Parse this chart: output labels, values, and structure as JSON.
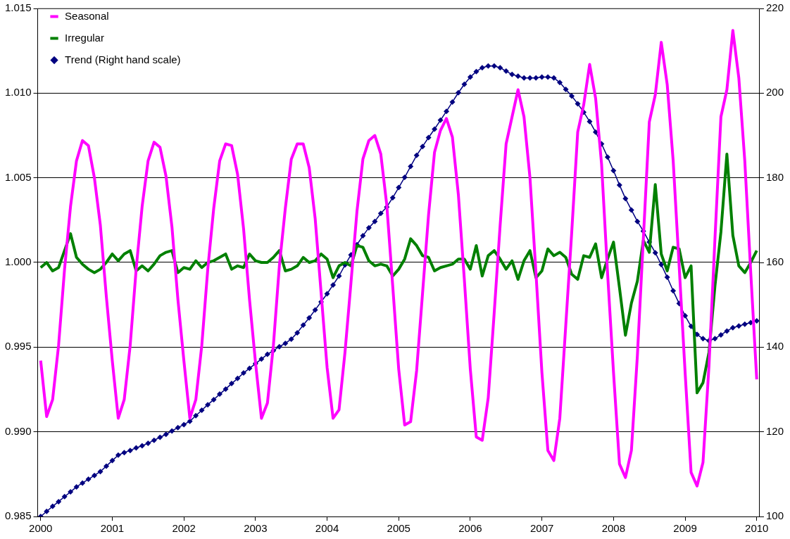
{
  "chart_data": {
    "type": "line",
    "categories": [
      "2000",
      null,
      null,
      null,
      null,
      null,
      null,
      null,
      null,
      null,
      null,
      null,
      "2001",
      null,
      null,
      null,
      null,
      null,
      null,
      null,
      null,
      null,
      null,
      null,
      "2002",
      null,
      null,
      null,
      null,
      null,
      null,
      null,
      null,
      null,
      null,
      null,
      "2003",
      null,
      null,
      null,
      null,
      null,
      null,
      null,
      null,
      null,
      null,
      null,
      "2004",
      null,
      null,
      null,
      null,
      null,
      null,
      null,
      null,
      null,
      null,
      null,
      "2005",
      null,
      null,
      null,
      null,
      null,
      null,
      null,
      null,
      null,
      null,
      null,
      "2006",
      null,
      null,
      null,
      null,
      null,
      null,
      null,
      null,
      null,
      null,
      null,
      "2007",
      null,
      null,
      null,
      null,
      null,
      null,
      null,
      null,
      null,
      null,
      null,
      "2008",
      null,
      null,
      null,
      null,
      null,
      null,
      null,
      null,
      null,
      null,
      null,
      "2009",
      null,
      null,
      null,
      null,
      null,
      null,
      null,
      null,
      null,
      null,
      null,
      "2010"
    ],
    "series": [
      {
        "name": "Seasonal",
        "color": "#ff00ff",
        "marker": "none",
        "values": [
          0.9942,
          0.9909,
          0.9919,
          0.9951,
          0.9996,
          1.0033,
          1.006,
          1.0072,
          1.0069,
          1.005,
          1.0022,
          0.998,
          0.9942,
          0.9908,
          0.9919,
          0.9951,
          0.9996,
          1.0033,
          1.006,
          1.0071,
          1.0068,
          1.0051,
          1.0021,
          0.9978,
          0.9942,
          0.9908,
          0.9919,
          0.9951,
          0.9996,
          1.0032,
          1.006,
          1.007,
          1.0069,
          1.0052,
          1.002,
          0.9978,
          0.9941,
          0.9908,
          0.9917,
          0.9951,
          0.9998,
          1.0032,
          1.0061,
          1.007,
          1.007,
          1.0056,
          1.0026,
          0.9982,
          0.9938,
          0.9908,
          0.9913,
          0.9947,
          0.9988,
          1.003,
          1.0061,
          1.0072,
          1.0075,
          1.0064,
          1.0034,
          0.9986,
          0.9937,
          0.9904,
          0.9906,
          0.9936,
          0.9982,
          1.0028,
          1.0065,
          1.0078,
          1.0085,
          1.0074,
          1.004,
          0.999,
          0.9937,
          0.9897,
          0.9895,
          0.992,
          0.997,
          1.0022,
          1.007,
          1.0086,
          1.0102,
          1.0086,
          1.005,
          0.9994,
          0.9935,
          0.9889,
          0.9883,
          0.9908,
          0.9963,
          1.0018,
          1.0077,
          1.0093,
          1.0117,
          1.0097,
          1.0058,
          0.9994,
          0.9935,
          0.9881,
          0.9873,
          0.9889,
          0.9945,
          1.0014,
          1.0083,
          1.0099,
          1.013,
          1.0105,
          1.006,
          0.9998,
          0.9935,
          0.9876,
          0.9868,
          0.9882,
          0.9939,
          1.0014,
          1.0086,
          1.0102,
          1.0137,
          1.0109,
          1.006,
          0.9994,
          0.9931
        ]
      },
      {
        "name": "Irregular",
        "color": "#008000",
        "marker": "none",
        "values": [
          0.9997,
          1.0,
          0.9995,
          0.9997,
          1.0007,
          1.0017,
          1.0003,
          0.9999,
          0.9996,
          0.9994,
          0.9996,
          1.0,
          1.0005,
          1.0001,
          1.0005,
          1.0007,
          0.9995,
          0.9998,
          0.9995,
          0.9999,
          1.0004,
          1.0006,
          1.0007,
          0.9994,
          0.9997,
          0.9996,
          1.0001,
          0.9997,
          1.0,
          1.0001,
          1.0003,
          1.0005,
          0.9996,
          0.9998,
          0.9997,
          1.0005,
          1.0001,
          1.0,
          1.0,
          1.0003,
          1.0007,
          0.9995,
          0.9996,
          0.9998,
          1.0003,
          1.0,
          1.0001,
          1.0005,
          1.0002,
          0.9991,
          0.9998,
          1.0,
          0.9998,
          1.001,
          1.0009,
          1.0001,
          0.9998,
          0.9999,
          0.9998,
          0.9992,
          0.9996,
          1.0002,
          1.0014,
          1.001,
          1.0004,
          1.0003,
          0.9995,
          0.9997,
          0.9998,
          0.9999,
          1.0002,
          1.0002,
          0.9996,
          1.001,
          0.9992,
          1.0004,
          1.0007,
          1.0002,
          0.9996,
          1.0001,
          0.999,
          1.0001,
          1.0007,
          0.9991,
          0.9995,
          1.0008,
          1.0004,
          1.0006,
          1.0003,
          0.9993,
          0.999,
          1.0004,
          1.0003,
          1.0011,
          0.9991,
          1.0002,
          1.0012,
          0.9985,
          0.9957,
          0.9976,
          0.9989,
          1.0013,
          1.0006,
          1.0046,
          1.0005,
          0.9995,
          1.0009,
          1.0008,
          0.9991,
          0.9998,
          0.9923,
          0.9929,
          0.9947,
          0.9986,
          1.0018,
          1.0064,
          1.0016,
          0.9998,
          0.9994,
          1.0,
          1.0007
        ]
      },
      {
        "name": "Trend (Right hand scale)",
        "color": "#000080",
        "marker": "diamond",
        "axis": "y2",
        "values": [
          100.0,
          101.2,
          102.4,
          103.5,
          104.7,
          105.8,
          107.0,
          107.9,
          108.8,
          109.7,
          110.6,
          111.9,
          113.2,
          114.5,
          115.1,
          115.6,
          116.2,
          116.7,
          117.3,
          118.0,
          118.7,
          119.4,
          120.2,
          121.0,
          121.7,
          122.5,
          123.8,
          125.1,
          126.4,
          127.6,
          128.9,
          130.1,
          131.4,
          132.6,
          133.9,
          135.0,
          136.1,
          137.2,
          138.3,
          139.2,
          140.1,
          140.9,
          141.9,
          143.4,
          145.2,
          146.9,
          148.8,
          150.7,
          152.6,
          154.7,
          156.8,
          159.4,
          161.8,
          164.2,
          166.3,
          168.2,
          169.7,
          171.6,
          173.1,
          175.3,
          177.7,
          180.1,
          182.7,
          185.3,
          187.4,
          189.5,
          191.5,
          193.6,
          195.7,
          197.9,
          200.1,
          202.1,
          203.8,
          205.1,
          206.0,
          206.4,
          206.4,
          206.0,
          205.2,
          204.4,
          204.0,
          203.6,
          203.6,
          203.6,
          203.8,
          203.8,
          203.6,
          202.5,
          200.9,
          199.3,
          197.5,
          195.5,
          193.3,
          190.8,
          188.0,
          184.9,
          181.7,
          178.3,
          175.1,
          172.4,
          169.7,
          167.4,
          164.8,
          162.3,
          159.5,
          156.5,
          153.3,
          150.3,
          147.4,
          144.9,
          143.0,
          142.0,
          141.5,
          142.0,
          142.9,
          143.8,
          144.6,
          145.0,
          145.4,
          145.8,
          146.2
        ]
      }
    ],
    "ylim": [
      0.985,
      1.015
    ],
    "yticks": [
      0.985,
      {
        "value": 0.99,
        "label": "0.990"
      },
      0.995,
      {
        "value": 1.0,
        "label": "1.000"
      },
      1.005,
      {
        "value": 1.01,
        "label": "1.010"
      },
      1.015
    ],
    "y2lim": [
      100,
      220
    ],
    "y2ticks": [
      100,
      120,
      140,
      160,
      180,
      200,
      220
    ],
    "grid": "y",
    "legend": "top left"
  }
}
